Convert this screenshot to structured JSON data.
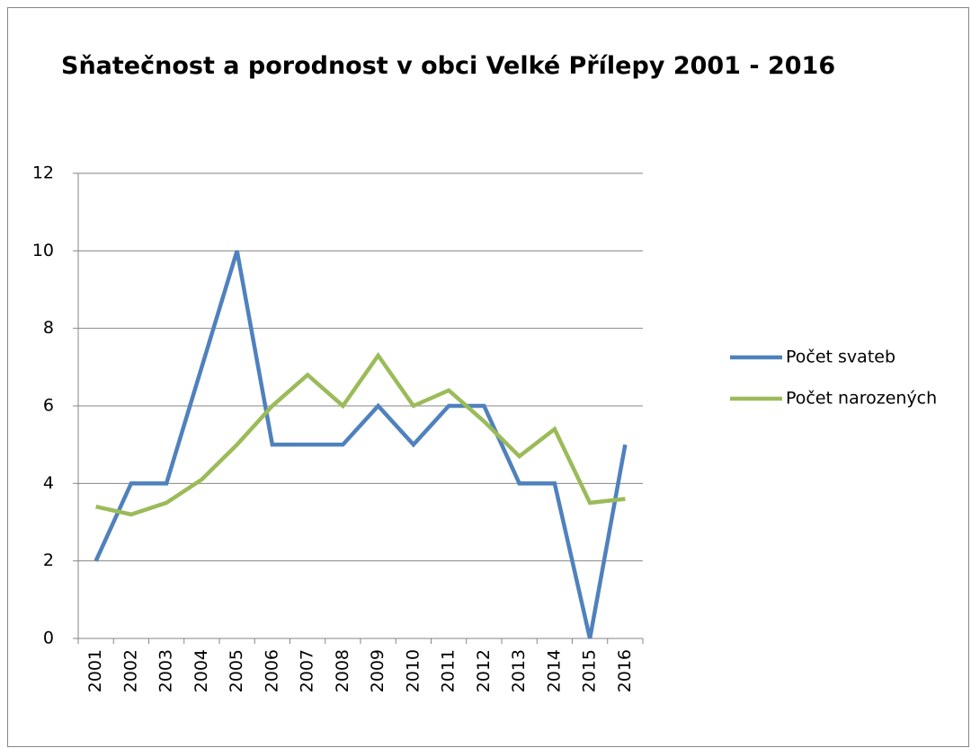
{
  "chart_data": {
    "type": "line",
    "title": "Sňatečnost a porodnost  v obci Velké Přílepy 2001 - 2016",
    "categories": [
      "2001",
      "2002",
      "2003",
      "2004",
      "2005",
      "2006",
      "2007",
      "2008",
      "2009",
      "2010",
      "2011",
      "2012",
      "2013",
      "2014",
      "2015",
      "2016"
    ],
    "series": [
      {
        "name": "Počet svateb",
        "color": "#4f81bd",
        "values": [
          2,
          4,
          4,
          7,
          10,
          5,
          5,
          5,
          6,
          5,
          6,
          6,
          4,
          4,
          0,
          5
        ]
      },
      {
        "name": "Počet narozených",
        "color": "#9bbb59",
        "values": [
          3.4,
          3.2,
          3.5,
          4.1,
          5.0,
          6.0,
          6.8,
          6.0,
          7.3,
          6.0,
          6.4,
          5.6,
          4.7,
          5.4,
          3.5,
          3.6
        ]
      }
    ],
    "ylim": [
      0,
      12
    ],
    "yticks": [
      0,
      2,
      4,
      6,
      8,
      10,
      12
    ],
    "grid": true,
    "legend": "right"
  }
}
